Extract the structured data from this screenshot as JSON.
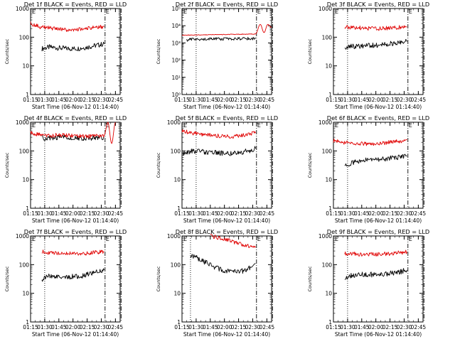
{
  "figure": {
    "xlabel": "Start Time (06-Nov-12 01:14:40)",
    "ylabel": "Counts/sec",
    "x_tick_labels": [
      "01:15",
      "01:30",
      "01:45",
      "02:00",
      "02:15",
      "02:30",
      "02:45"
    ]
  },
  "chart_data": [
    {
      "type": "line",
      "title": "Det 1f BLACK = Events, RED = LLD",
      "xlabel": "Start Time (06-Nov-12 01:14:40)",
      "ylabel": "Counts/sec",
      "x_ticks": [
        "01:15",
        "01:30",
        "01:45",
        "02:00",
        "02:15",
        "02:30",
        "02:45"
      ],
      "y_scale": "log",
      "ylim": [
        1,
        1000
      ],
      "y_tick_labels": [
        "1",
        "10",
        "100",
        "1000"
      ],
      "corner_mark": "E",
      "vlines": [
        {
          "time": "01:30",
          "style": "dotted"
        },
        {
          "time": "02:34",
          "style": "dash-dot"
        },
        {
          "time": "02:51",
          "style": "dash-dot"
        }
      ],
      "series": [
        {
          "color": "#000000",
          "x": [
            "01:27",
            "01:35",
            "01:45",
            "01:55",
            "02:05",
            "02:15",
            "02:25",
            "02:33"
          ],
          "values": [
            40,
            45,
            42,
            40,
            40,
            45,
            52,
            58
          ]
        },
        {
          "color": "#e00000",
          "x": [
            "01:15",
            "01:25",
            "01:35",
            "01:45",
            "01:55",
            "02:05",
            "02:15",
            "02:25",
            "02:33"
          ],
          "values": [
            300,
            230,
            210,
            190,
            180,
            185,
            200,
            220,
            230
          ]
        }
      ]
    },
    {
      "type": "line",
      "title": "Det 2f BLACK = Events, RED = LLD",
      "xlabel": "Start Time (06-Nov-12 01:14:40)",
      "ylabel": "Counts/sec",
      "x_ticks": [
        "01:15",
        "01:30",
        "01:45",
        "02:00",
        "02:15",
        "02:30",
        "02:45"
      ],
      "y_scale": "log",
      "ylim": [
        1,
        100000
      ],
      "y_tick_labels": [
        "10⁰",
        "10¹",
        "10²",
        "10³",
        "10⁴",
        "10⁵"
      ],
      "corner_mark": "E",
      "vlines": [
        {
          "time": "01:30",
          "style": "dotted"
        },
        {
          "time": "02:34",
          "style": "dash-dot"
        },
        {
          "time": "02:51",
          "style": "dash-dot"
        }
      ],
      "series": [
        {
          "color": "#000000",
          "x": [
            "01:20",
            "01:30",
            "01:45",
            "02:00",
            "02:15",
            "02:33"
          ],
          "values": [
            1500,
            1600,
            1650,
            1700,
            1750,
            1800
          ]
        },
        {
          "color": "#e00000",
          "x": [
            "01:15",
            "01:30",
            "01:45",
            "02:00",
            "02:15",
            "02:33",
            "02:38",
            "02:42",
            "02:46",
            "02:50"
          ],
          "values": [
            2800,
            2900,
            3000,
            3100,
            3200,
            3300,
            12000,
            4000,
            12000,
            8000
          ]
        }
      ]
    },
    {
      "type": "line",
      "title": "Det 3f BLACK = Events, RED = LLD",
      "xlabel": "Start Time (06-Nov-12 01:14:40)",
      "ylabel": "Counts/sec",
      "x_ticks": [
        "01:15",
        "01:30",
        "01:45",
        "02:00",
        "02:15",
        "02:30",
        "02:45"
      ],
      "y_scale": "log",
      "ylim": [
        1,
        1000
      ],
      "y_tick_labels": [
        "1",
        "10",
        "100",
        "1000"
      ],
      "corner_mark": "E",
      "vlines": [
        {
          "time": "01:30",
          "style": "dotted"
        },
        {
          "time": "02:34",
          "style": "dash-dot"
        },
        {
          "time": "02:51",
          "style": "dash-dot"
        }
      ],
      "series": [
        {
          "color": "#000000",
          "x": [
            "01:27",
            "01:35",
            "01:45",
            "01:55",
            "02:05",
            "02:15",
            "02:25",
            "02:33"
          ],
          "values": [
            45,
            48,
            50,
            52,
            55,
            60,
            65,
            70
          ]
        },
        {
          "color": "#e00000",
          "x": [
            "01:27",
            "01:35",
            "01:45",
            "01:55",
            "02:05",
            "02:15",
            "02:25",
            "02:33"
          ],
          "values": [
            230,
            220,
            210,
            200,
            200,
            210,
            220,
            230
          ]
        }
      ]
    },
    {
      "type": "line",
      "title": "Det 4f BLACK = Events, RED = LLD",
      "xlabel": "Start Time (06-Nov-12 01:14:40)",
      "ylabel": "Counts/sec",
      "x_ticks": [
        "01:15",
        "01:30",
        "01:45",
        "02:00",
        "02:15",
        "02:30",
        "02:45"
      ],
      "y_scale": "log",
      "ylim": [
        1,
        1000
      ],
      "y_tick_labels": [
        "1",
        "10",
        "100",
        "1000"
      ],
      "corner_mark": "E",
      "vlines": [
        {
          "time": "01:30",
          "style": "dotted"
        },
        {
          "time": "02:34",
          "style": "dash-dot"
        },
        {
          "time": "02:51",
          "style": "dash-dot"
        }
      ],
      "series": [
        {
          "color": "#000000",
          "x": [
            "01:27",
            "01:35",
            "01:45",
            "01:55",
            "02:05",
            "02:15",
            "02:25",
            "02:33"
          ],
          "values": [
            280,
            290,
            300,
            290,
            280,
            280,
            290,
            300
          ]
        },
        {
          "color": "#e00000",
          "x": [
            "01:15",
            "01:25",
            "01:35",
            "01:45",
            "01:55",
            "02:05",
            "02:15",
            "02:25",
            "02:33",
            "02:37",
            "02:41",
            "02:45"
          ],
          "values": [
            420,
            360,
            340,
            360,
            350,
            330,
            320,
            330,
            350,
            1000,
            180,
            1000
          ]
        }
      ]
    },
    {
      "type": "line",
      "title": "Det 5f BLACK = Events, RED = LLD",
      "xlabel": "Start Time (06-Nov-12 01:14:40)",
      "ylabel": "Counts/sec",
      "x_ticks": [
        "01:15",
        "01:30",
        "01:45",
        "02:00",
        "02:15",
        "02:30",
        "02:45"
      ],
      "y_scale": "log",
      "ylim": [
        1,
        1000
      ],
      "y_tick_labels": [
        "1",
        "10",
        "100",
        "1000"
      ],
      "corner_mark": "E",
      "vlines": [
        {
          "time": "01:30",
          "style": "dotted"
        },
        {
          "time": "02:34",
          "style": "dash-dot"
        },
        {
          "time": "02:51",
          "style": "dash-dot"
        }
      ],
      "series": [
        {
          "color": "#000000",
          "x": [
            "01:16",
            "01:25",
            "01:35",
            "01:45",
            "01:55",
            "02:05",
            "02:15",
            "02:25",
            "02:33"
          ],
          "values": [
            80,
            100,
            95,
            90,
            85,
            80,
            85,
            100,
            120
          ]
        },
        {
          "color": "#e00000",
          "x": [
            "01:15",
            "01:25",
            "01:35",
            "01:45",
            "01:55",
            "02:05",
            "02:15",
            "02:25",
            "02:33"
          ],
          "values": [
            500,
            420,
            380,
            350,
            330,
            320,
            330,
            380,
            420
          ]
        }
      ]
    },
    {
      "type": "line",
      "title": "Det 6f BLACK = Events, RED = LLD",
      "xlabel": "Start Time (06-Nov-12 01:14:40)",
      "ylabel": "Counts/sec",
      "x_ticks": [
        "01:15",
        "01:30",
        "01:45",
        "02:00",
        "02:15",
        "02:30",
        "02:45"
      ],
      "y_scale": "log",
      "ylim": [
        1,
        1000
      ],
      "y_tick_labels": [
        "1",
        "10",
        "100",
        "1000"
      ],
      "corner_mark": "E",
      "vlines": [
        {
          "time": "01:30",
          "style": "dotted"
        },
        {
          "time": "02:34",
          "style": "dash-dot"
        },
        {
          "time": "02:51",
          "style": "dash-dot"
        }
      ],
      "series": [
        {
          "color": "#000000",
          "x": [
            "01:27",
            "01:35",
            "01:45",
            "01:55",
            "02:05",
            "02:15",
            "02:25",
            "02:33"
          ],
          "values": [
            30,
            40,
            45,
            50,
            50,
            55,
            60,
            65
          ]
        },
        {
          "color": "#e00000",
          "x": [
            "01:15",
            "01:25",
            "01:35",
            "01:45",
            "01:55",
            "02:05",
            "02:15",
            "02:25",
            "02:33"
          ],
          "values": [
            230,
            200,
            190,
            180,
            175,
            180,
            200,
            220,
            240
          ]
        }
      ]
    },
    {
      "type": "line",
      "title": "Det 7f BLACK = Events, RED = LLD",
      "xlabel": "Start Time (06-Nov-12 01:14:40)",
      "ylabel": "Counts/sec",
      "x_ticks": [
        "01:15",
        "01:30",
        "01:45",
        "02:00",
        "02:15",
        "02:30",
        "02:45"
      ],
      "y_scale": "log",
      "ylim": [
        1,
        1000
      ],
      "y_tick_labels": [
        "1",
        "10",
        "100",
        "1000"
      ],
      "corner_mark": "E",
      "vlines": [
        {
          "time": "01:30",
          "style": "dotted"
        },
        {
          "time": "02:34",
          "style": "dash-dot"
        },
        {
          "time": "02:51",
          "style": "dash-dot"
        }
      ],
      "series": [
        {
          "color": "#000000",
          "x": [
            "01:27",
            "01:35",
            "01:45",
            "01:55",
            "02:05",
            "02:15",
            "02:25",
            "02:33"
          ],
          "values": [
            30,
            40,
            40,
            38,
            38,
            45,
            55,
            65
          ]
        },
        {
          "color": "#e00000",
          "x": [
            "01:27",
            "01:35",
            "01:45",
            "01:55",
            "02:05",
            "02:15",
            "02:25",
            "02:33"
          ],
          "values": [
            280,
            260,
            250,
            245,
            240,
            250,
            270,
            290
          ]
        }
      ]
    },
    {
      "type": "line",
      "title": "Det 8f BLACK = Events, RED = LLD",
      "xlabel": "Start Time (06-Nov-12 01:14:40)",
      "ylabel": "Counts/sec",
      "x_ticks": [
        "01:15",
        "01:30",
        "01:45",
        "02:00",
        "02:15",
        "02:30",
        "02:45"
      ],
      "y_scale": "log",
      "ylim": [
        1,
        1000
      ],
      "y_tick_labels": [
        "1",
        "10",
        "100",
        "1000"
      ],
      "corner_mark": "E",
      "vlines": [
        {
          "time": "01:24",
          "style": "dotted"
        },
        {
          "time": "02:34",
          "style": "dash-dot"
        },
        {
          "time": "02:51",
          "style": "dash-dot"
        }
      ],
      "series": [
        {
          "color": "#000000",
          "x": [
            "01:24",
            "01:30",
            "01:40",
            "01:50",
            "02:00",
            "02:10",
            "02:20",
            "02:28",
            "02:33"
          ],
          "values": [
            200,
            180,
            120,
            80,
            60,
            55,
            60,
            80,
            110
          ]
        },
        {
          "color": "#e00000",
          "x": [
            "01:45",
            "01:55",
            "02:05",
            "02:15",
            "02:25",
            "02:33"
          ],
          "values": [
            1000,
            850,
            700,
            550,
            450,
            400
          ]
        }
      ]
    },
    {
      "type": "line",
      "title": "Det 9f BLACK = Events, RED = LLD",
      "xlabel": "Start Time (06-Nov-12 01:14:40)",
      "ylabel": "Counts/sec",
      "x_ticks": [
        "01:15",
        "01:30",
        "01:45",
        "02:00",
        "02:15",
        "02:30",
        "02:45"
      ],
      "y_scale": "log",
      "ylim": [
        1,
        1000
      ],
      "y_tick_labels": [
        "1",
        "10",
        "100",
        "1000"
      ],
      "corner_mark": "E",
      "vlines": [
        {
          "time": "01:30",
          "style": "dotted"
        },
        {
          "time": "02:34",
          "style": "dash-dot"
        },
        {
          "time": "02:51",
          "style": "dash-dot"
        }
      ],
      "series": [
        {
          "color": "#000000",
          "x": [
            "01:27",
            "01:35",
            "01:45",
            "01:55",
            "02:05",
            "02:15",
            "02:25",
            "02:33"
          ],
          "values": [
            35,
            42,
            45,
            45,
            45,
            50,
            55,
            65
          ]
        },
        {
          "color": "#e00000",
          "x": [
            "01:27",
            "01:35",
            "01:45",
            "01:55",
            "02:05",
            "02:15",
            "02:25",
            "02:33"
          ],
          "values": [
            250,
            240,
            230,
            230,
            235,
            240,
            260,
            280
          ]
        }
      ]
    }
  ]
}
